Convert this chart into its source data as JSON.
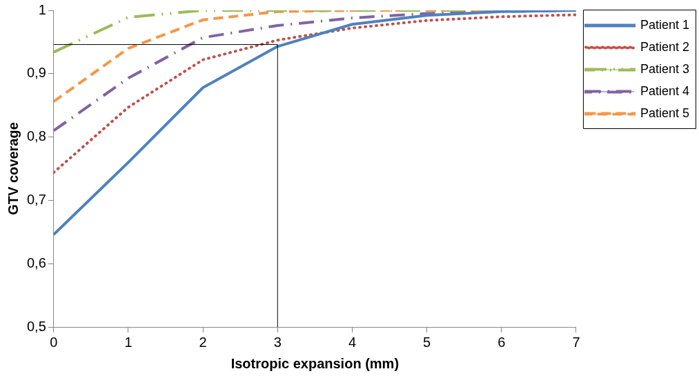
{
  "chart_data": {
    "type": "line",
    "xlabel": "Isotropic expansion (mm)",
    "ylabel": "GTV coverage",
    "x": [
      0,
      1,
      2,
      3,
      4,
      5,
      6,
      7
    ],
    "xlim": [
      0,
      7
    ],
    "xticks": [
      0,
      1,
      2,
      3,
      4,
      5,
      6,
      7
    ],
    "ylim": [
      0.5,
      1
    ],
    "yticks": [
      {
        "value": 0.5,
        "label": "0,5"
      },
      {
        "value": 0.6,
        "label": "0,6"
      },
      {
        "value": 0.7,
        "label": "0,7"
      },
      {
        "value": 0.8,
        "label": "0,8"
      },
      {
        "value": 0.9,
        "label": "0,9"
      },
      {
        "value": 1,
        "label": "1"
      }
    ],
    "grid": false,
    "legend": "right",
    "marker": "none",
    "series": [
      {
        "name": "Patient 1",
        "color": "#4f81bd",
        "line_style": "solid",
        "values": [
          0.646,
          0.76,
          0.878,
          0.943,
          0.978,
          0.992,
          0.998,
          1.0
        ]
      },
      {
        "name": "Patient 2",
        "color": "#c0504d",
        "line_style": "dotted",
        "values": [
          0.744,
          0.847,
          0.922,
          0.953,
          0.972,
          0.984,
          0.99,
          0.993
        ]
      },
      {
        "name": "Patient 3",
        "color": "#9bbb59",
        "line_style": "longdashdot",
        "values": [
          0.934,
          0.989,
          1.0,
          1.0,
          1.0,
          1.0,
          1.0,
          1.0
        ]
      },
      {
        "name": "Patient 4",
        "color": "#8064a2",
        "line_style": "dashdot",
        "values": [
          0.81,
          0.893,
          0.957,
          0.976,
          0.988,
          0.995,
          0.998,
          1.0
        ]
      },
      {
        "name": "Patient 5",
        "color": "#f79646",
        "line_style": "dashed",
        "values": [
          0.856,
          0.94,
          0.985,
          0.998,
          1.0,
          1.0,
          1.0,
          1.0
        ]
      }
    ],
    "ref_lines": [
      {
        "axis": "y",
        "value": 0.946,
        "color": "#000000"
      },
      {
        "axis": "x",
        "value": 3,
        "color": "#000000"
      }
    ]
  }
}
